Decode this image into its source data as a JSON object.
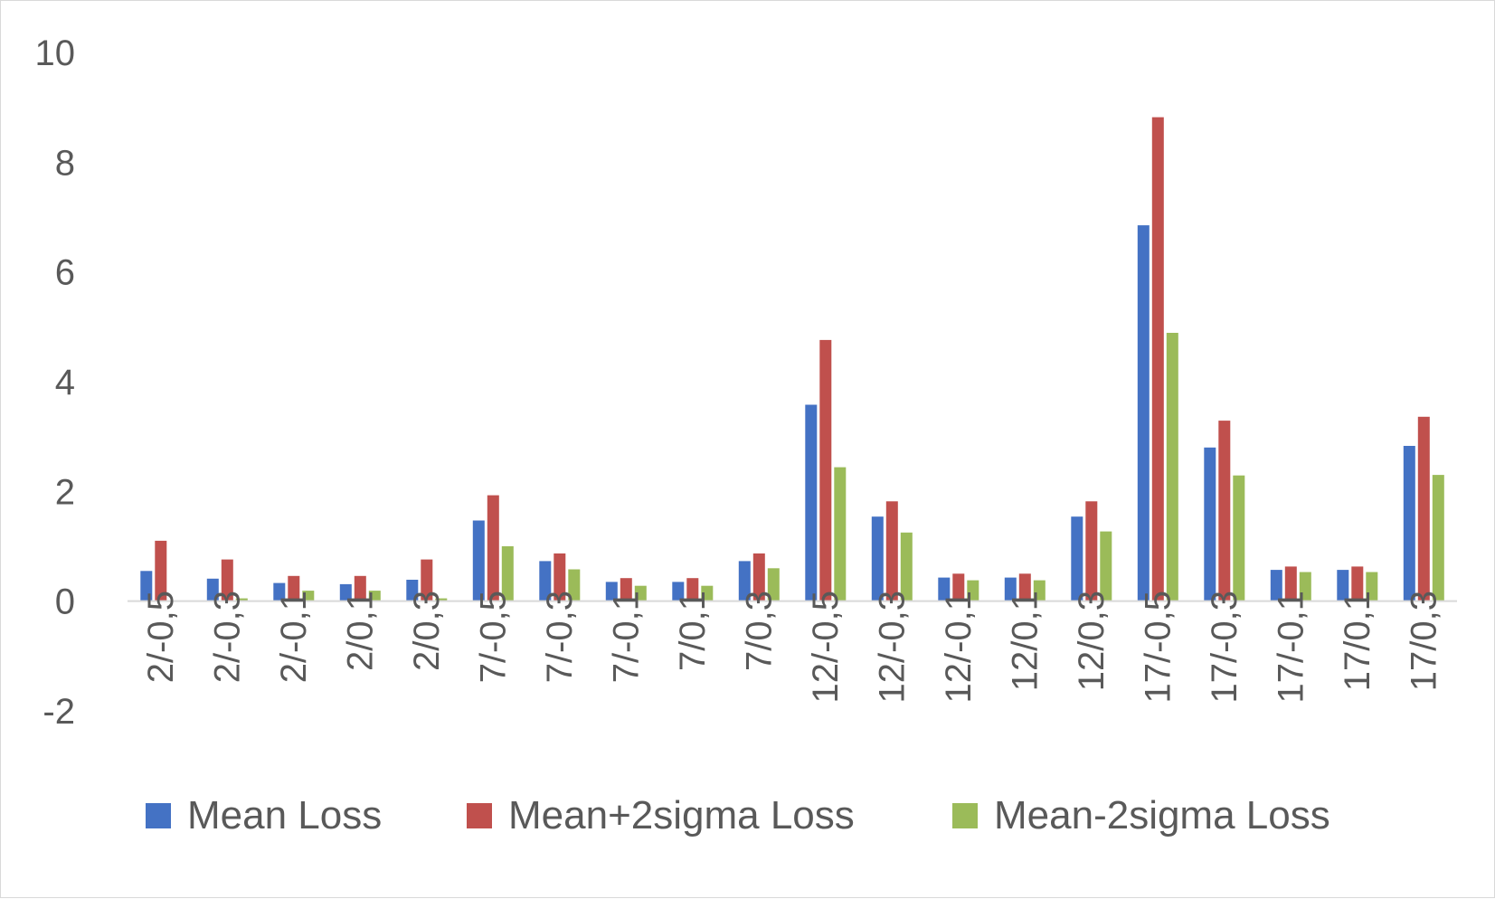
{
  "chart_data": {
    "type": "bar",
    "title": "",
    "xlabel": "",
    "ylabel": "",
    "ylim": [
      -2,
      10
    ],
    "yticks": [
      -2,
      0,
      2,
      4,
      6,
      8,
      10
    ],
    "grid": false,
    "legend_position": "bottom",
    "categories": [
      "2/-0,5",
      "2/-0,3",
      "2/-0,1",
      "2/0,1",
      "2/0,3",
      "7/-0,5",
      "7/-0,3",
      "7/-0,1",
      "7/0,1",
      "7/0,3",
      "12/-0,5",
      "12/-0,3",
      "12/-0,1",
      "12/0,1",
      "12/0,3",
      "17/-0,5",
      "17/-0,3",
      "17/-0,1",
      "17/0,1",
      "17/0,3"
    ],
    "series": [
      {
        "name": "Mean Loss",
        "color": "#4472C4",
        "values": [
          0.55,
          0.41,
          0.33,
          0.31,
          0.39,
          1.47,
          0.73,
          0.35,
          0.35,
          0.73,
          3.58,
          1.54,
          0.43,
          0.43,
          1.54,
          6.85,
          2.8,
          0.57,
          0.57,
          2.83
        ]
      },
      {
        "name": "Mean+2sigma Loss",
        "color": "#C0504D",
        "values": [
          1.1,
          0.76,
          0.46,
          0.46,
          0.76,
          1.93,
          0.87,
          0.42,
          0.42,
          0.87,
          4.76,
          1.82,
          0.5,
          0.5,
          1.82,
          8.82,
          3.29,
          0.63,
          0.63,
          3.36
        ]
      },
      {
        "name": "Mean-2sigma Loss",
        "color": "#9BBB59",
        "values": [
          0.0,
          0.05,
          0.19,
          0.19,
          0.05,
          1.0,
          0.58,
          0.28,
          0.28,
          0.6,
          2.44,
          1.25,
          0.38,
          0.38,
          1.27,
          4.89,
          2.29,
          0.53,
          0.53,
          2.3
        ]
      }
    ]
  }
}
